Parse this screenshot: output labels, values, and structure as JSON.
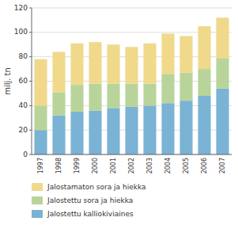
{
  "chart_data": {
    "type": "bar",
    "stacked": true,
    "categories": [
      "1997",
      "1998",
      "1999",
      "2000",
      "2001",
      "2002",
      "2003",
      "2004",
      "2005",
      "2006",
      "2007"
    ],
    "series": [
      {
        "name": "Jalostettu kalliokiviaines",
        "color": "#7ab3d4",
        "values": [
          20,
          32,
          35,
          36,
          38,
          39,
          40,
          42,
          44,
          48,
          54
        ]
      },
      {
        "name": "Jalostettu sora ja hiekka",
        "color": "#b8d49a",
        "values": [
          20,
          19,
          22,
          22,
          20,
          19,
          18,
          24,
          23,
          22,
          25
        ]
      },
      {
        "name": "Jalostamaton sora ja hiekka",
        "color": "#f0d98a",
        "values": [
          38,
          33,
          34,
          34,
          32,
          30,
          33,
          33,
          30,
          35,
          33
        ]
      }
    ],
    "ylabel": "milj. tn",
    "ylim": [
      0,
      120
    ],
    "yticks": [
      0,
      20,
      40,
      60,
      80,
      100,
      120
    ],
    "grid": true,
    "legend": "bottom"
  }
}
